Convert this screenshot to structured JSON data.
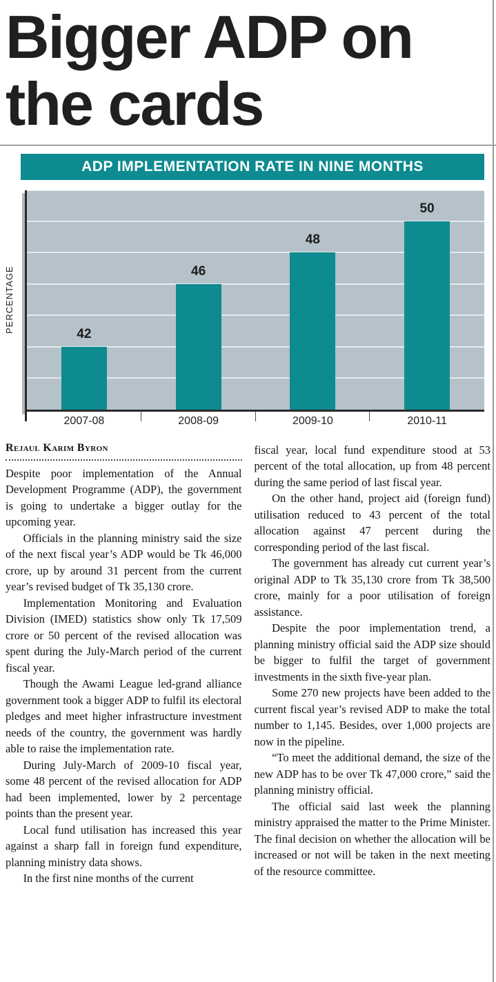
{
  "page": {
    "headline": "Bigger ADP on the cards"
  },
  "chart_data": {
    "type": "bar",
    "title": "ADP IMPLEMENTATION RATE IN NINE MONTHS",
    "xlabel": "",
    "ylabel": "PERCENTAGE",
    "categories": [
      "2007-08",
      "2008-09",
      "2009-10",
      "2010-11"
    ],
    "values": [
      42,
      46,
      48,
      50
    ],
    "ylim": [
      38,
      52
    ],
    "grid": true,
    "grid_step": 2,
    "legend_position": "none",
    "bar_color": "#0d8b90",
    "plot_background": "#b5c2ca",
    "title_bar_color": "#0d8b90",
    "title_text_color": "#ffffff"
  },
  "article": {
    "byline": "Rejaul Karim Byron",
    "left_paragraphs": [
      "Despite poor implementation of the Annual Development Programme (ADP), the government is going to undertake a bigger outlay for the upcoming year.",
      "Officials in the planning ministry said the size of the next fiscal year’s ADP would be Tk 46,000 crore, up by around 31 percent from the current year’s revised budget of Tk 35,130 crore.",
      "Implementation Monitoring and Evaluation Division (IMED) statistics show only Tk 17,509 crore or 50 percent of the revised allocation was spent during the July-March period of the current fiscal year.",
      "Though the Awami League led-grand alliance government took a bigger ADP to fulfil its electoral pledges and meet higher infrastructure investment needs of the country, the government was hardly able to raise the implementation rate.",
      "During July-March of 2009-10 fiscal year, some 48 percent of the revised allocation for ADP had been implemented, lower by 2 percentage points than the present year.",
      "Local fund utilisation has increased this year against a sharp fall in foreign fund expenditure, planning ministry data shows.",
      "In the first nine months of the current"
    ],
    "right_paragraphs": [
      "fiscal year, local fund expenditure stood at 53 percent of the total allocation, up from 48 percent during the same period of last fiscal year.",
      "On the other hand, project aid (foreign fund) utilisation reduced to 43 percent of the total allocation against 47 percent during the corresponding period of the last fiscal.",
      "The government has already cut current year’s original ADP to Tk 35,130 crore from Tk 38,500 crore, mainly for a poor utilisation of foreign assistance.",
      "Despite the poor implementation trend, a planning ministry official said the ADP size should be bigger to fulfil the target of government investments in the sixth five-year plan.",
      "Some 270 new projects have been added to the current fiscal year’s revised ADP to make the total number to 1,145. Besides, over 1,000 projects are now in the pipeline.",
      "“To meet the additional demand, the size of the new ADP has to be over Tk 47,000 crore,” said the planning ministry official.",
      "The official said last week the planning ministry appraised the matter to the Prime Minister. The final decision on whether the allocation will be increased or not will be taken in the next meeting of the resource committee."
    ]
  }
}
